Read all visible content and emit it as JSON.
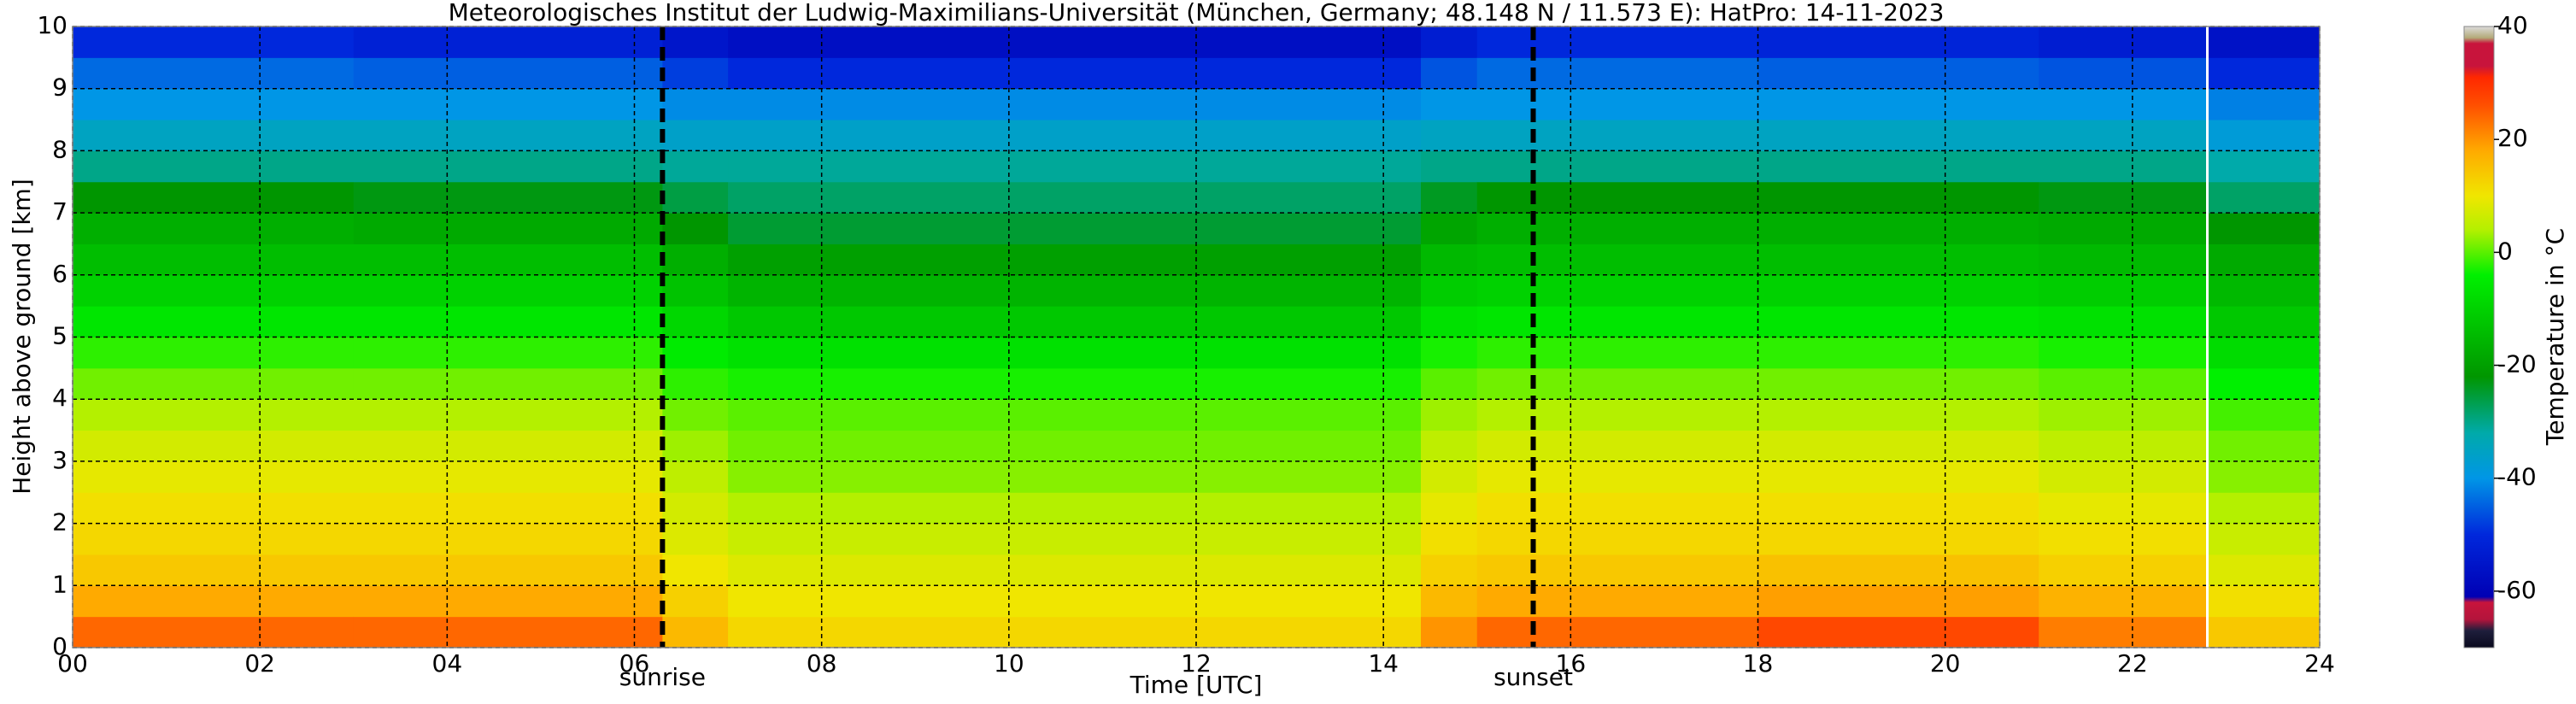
{
  "chart_data": {
    "type": "heatmap",
    "title": "Meteorologisches Institut der Ludwig-Maximilians-Universität (München, Germany; 48.148 N / 11.573 E):    HatPro: 14-11-2023",
    "xlabel": "Time [UTC]",
    "ylabel": "Height above ground [km]",
    "colorbar_label": "Temperature in °C",
    "xlim": [
      0,
      24
    ],
    "ylim": [
      0,
      10
    ],
    "xticks": [
      {
        "value": 0,
        "label": "00"
      },
      {
        "value": 2,
        "label": "02"
      },
      {
        "value": 4,
        "label": "04"
      },
      {
        "value": 6,
        "label": "06"
      },
      {
        "value": 8,
        "label": "08"
      },
      10,
      12,
      14,
      16,
      18,
      20,
      22,
      24
    ],
    "yticks": [
      0,
      1,
      2,
      3,
      4,
      5,
      6,
      7,
      8,
      9,
      10
    ],
    "clim": [
      -70,
      40
    ],
    "cticks": [
      -60,
      -40,
      -20,
      0,
      20,
      40
    ],
    "grid": true,
    "colorscale": [
      [
        -70,
        "#0a0a1e"
      ],
      [
        -67,
        "#1e1e3c"
      ],
      [
        -65,
        "#b4143c"
      ],
      [
        -62,
        "#c8143c"
      ],
      [
        -61,
        "#0000b4"
      ],
      [
        -50,
        "#0028dc"
      ],
      [
        -40,
        "#0096e6"
      ],
      [
        -32,
        "#00aaaa"
      ],
      [
        -22,
        "#009600"
      ],
      [
        -12,
        "#00c800"
      ],
      [
        -4,
        "#00f000"
      ],
      [
        4,
        "#b4f000"
      ],
      [
        10,
        "#f0e600"
      ],
      [
        18,
        "#ffaa00"
      ],
      [
        26,
        "#ff5000"
      ],
      [
        31,
        "#ff2800"
      ],
      [
        33,
        "#c8143c"
      ],
      [
        37,
        "#c8143c"
      ],
      [
        38,
        "#b4aa78"
      ],
      [
        40,
        "#dcdcdc"
      ]
    ],
    "x_edges": [
      0,
      3,
      6.3,
      7,
      10,
      14.4,
      15,
      18,
      21,
      22.8,
      24
    ],
    "y_edges": [
      0,
      0.5,
      1,
      1.5,
      2,
      2.5,
      3,
      3.5,
      4,
      4.5,
      5,
      5.5,
      6,
      6.5,
      7,
      7.5,
      8,
      8.5,
      9,
      9.5,
      10
    ],
    "values": [
      [
        24,
        18,
        14,
        12,
        11,
        9,
        7,
        4,
        1,
        -2,
        -6,
        -10,
        -14,
        -17,
        -22,
        -30,
        -35,
        -40,
        -44,
        -50
      ],
      [
        24,
        18,
        14,
        12,
        11,
        9,
        7,
        4,
        1,
        -2,
        -6,
        -10,
        -14,
        -18,
        -23,
        -30,
        -35,
        -40,
        -45,
        -52
      ],
      [
        16,
        13,
        10,
        8,
        7,
        5,
        3,
        1,
        -2,
        -5,
        -9,
        -13,
        -17,
        -22,
        -26,
        -31,
        -36,
        -41,
        -48,
        -55
      ],
      [
        12,
        10,
        8,
        6,
        4,
        2,
        1,
        0,
        -3,
        -7,
        -12,
        -16,
        -20,
        -25,
        -28,
        -31,
        -36,
        -41,
        -50,
        -57
      ],
      [
        12,
        10,
        8,
        6,
        4,
        2,
        1,
        0,
        -3,
        -7,
        -12,
        -16,
        -20,
        -25,
        -28,
        -31,
        -36,
        -41,
        -50,
        -57
      ],
      [
        20,
        16,
        13,
        11,
        9,
        7,
        5,
        3,
        0,
        -3,
        -7,
        -11,
        -15,
        -19,
        -24,
        -30,
        -35,
        -40,
        -46,
        -53
      ],
      [
        24,
        18,
        14,
        12,
        11,
        9,
        7,
        4,
        1,
        -2,
        -6,
        -10,
        -14,
        -17,
        -22,
        -30,
        -35,
        -40,
        -44,
        -50
      ],
      [
        27,
        19,
        15,
        12,
        11,
        9,
        7,
        4,
        1,
        -2,
        -6,
        -10,
        -14,
        -17,
        -22,
        -30,
        -35,
        -40,
        -45,
        -51
      ],
      [
        22,
        17,
        13,
        11,
        9,
        7,
        5,
        3,
        0,
        -3,
        -7,
        -11,
        -15,
        -18,
        -23,
        -30,
        -35,
        -40,
        -46,
        -53
      ],
      [
        14,
        11,
        8,
        6,
        4,
        2,
        1,
        -1,
        -4,
        -8,
        -12,
        -15,
        -18,
        -22,
        -28,
        -32,
        -38,
        -42,
        -50,
        -56
      ]
    ],
    "events": [
      {
        "label": "sunrise",
        "x": 6.3
      },
      {
        "label": "sunset",
        "x": 15.6
      }
    ],
    "break_x": 22.8
  }
}
